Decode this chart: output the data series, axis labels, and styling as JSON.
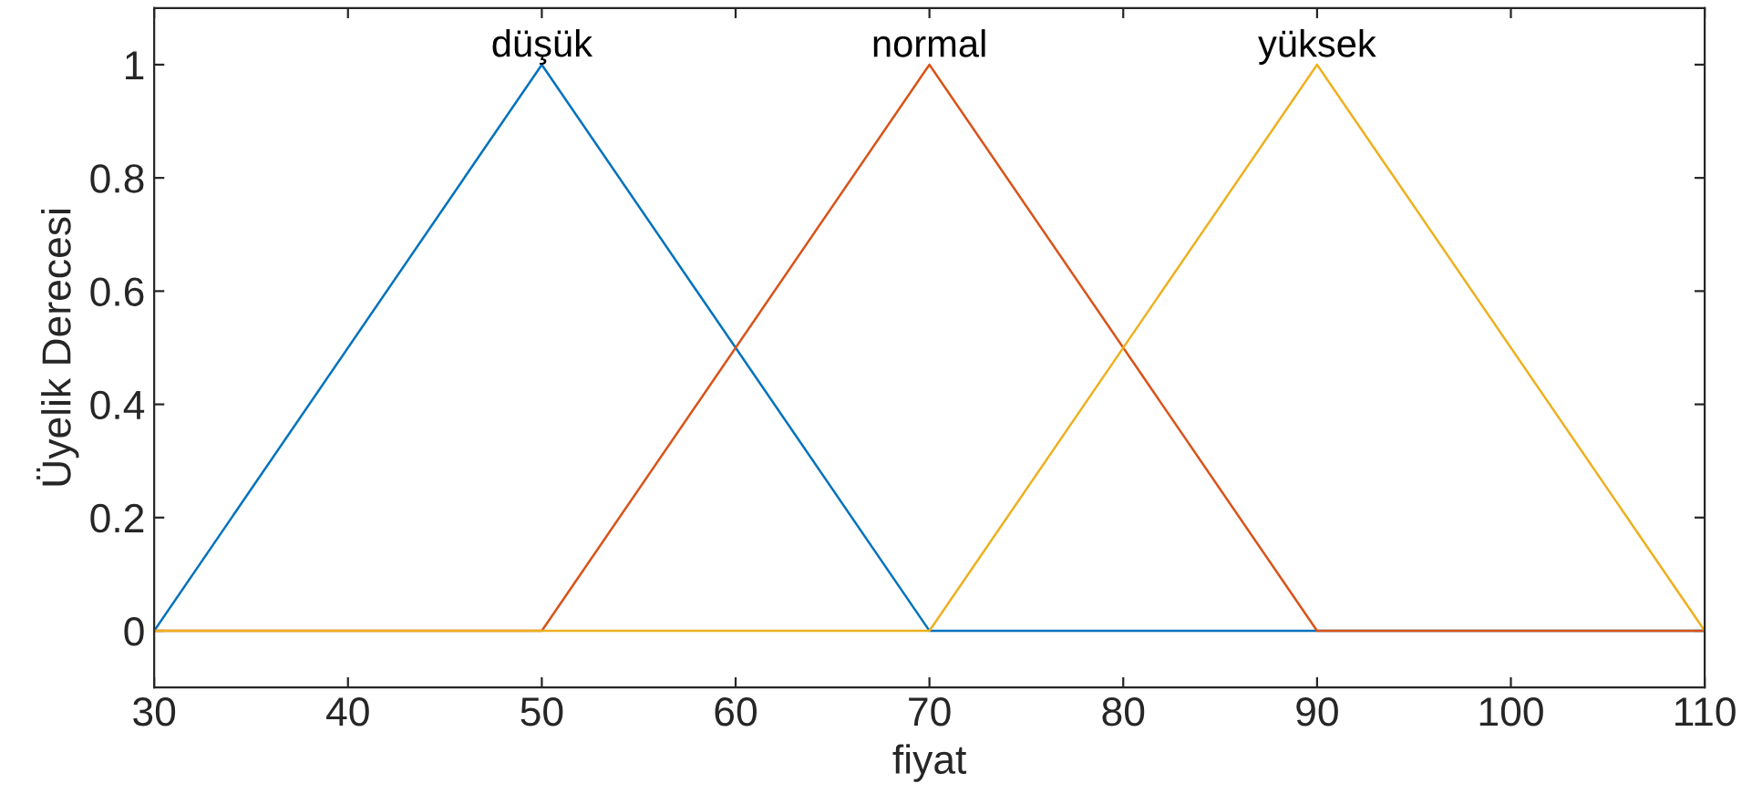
{
  "chart_data": {
    "type": "line",
    "xlabel": "fiyat",
    "ylabel": "Üyelik Derecesi",
    "series": [
      {
        "name": "düşük",
        "color": "#0072bd",
        "x": [
          30,
          50,
          70,
          110
        ],
        "values": [
          0,
          1,
          0,
          0
        ]
      },
      {
        "name": "normal",
        "color": "#d95319",
        "x": [
          30,
          50,
          70,
          90,
          110
        ],
        "values": [
          0,
          0,
          1,
          0,
          0
        ]
      },
      {
        "name": "yüksek",
        "color": "#edb120",
        "x": [
          30,
          70,
          90,
          110
        ],
        "values": [
          0,
          0,
          1,
          0
        ]
      }
    ],
    "xlim": [
      30,
      110
    ],
    "xticks": [
      30,
      40,
      50,
      60,
      70,
      80,
      90,
      100,
      110
    ],
    "ylim": [
      -0.1,
      1.1
    ],
    "yticks": [
      0,
      0.2,
      0.4,
      0.6,
      0.8,
      1
    ],
    "grid": false,
    "legend": false,
    "marker": "none",
    "line_style": "solid"
  }
}
